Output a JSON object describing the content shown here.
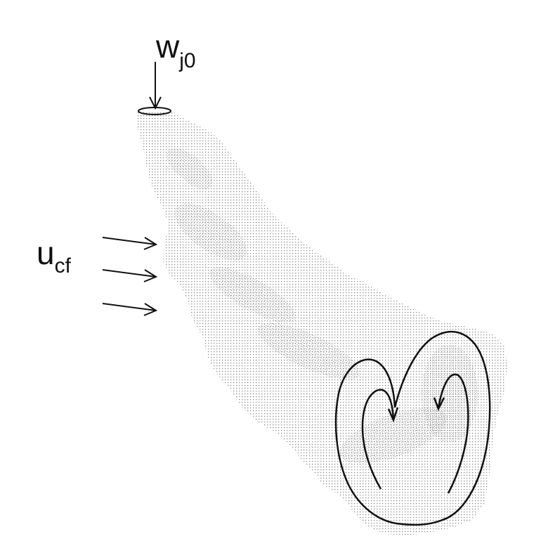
{
  "labels": {
    "jet_velocity": {
      "main": "w",
      "sub": "j0"
    },
    "crossflow_velocity": {
      "main": "u",
      "sub": "cf"
    }
  },
  "colors": {
    "plume_dots": "#8a8a8a",
    "ink": "#111111",
    "background": "#ffffff"
  }
}
